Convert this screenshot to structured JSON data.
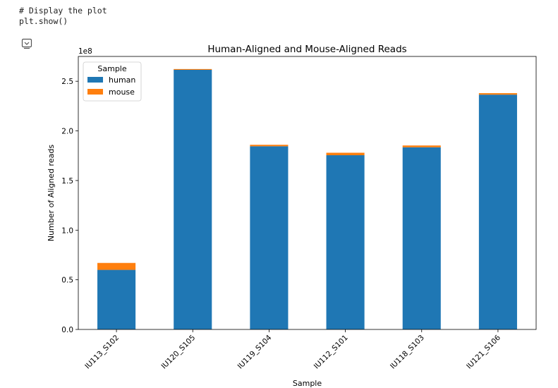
{
  "code": {
    "line1": "# Display the plot",
    "line2": "plt.show()"
  },
  "output_icon": "output-toggle-icon",
  "chart_data": {
    "type": "bar",
    "stacked": true,
    "title": "Human-Aligned and Mouse-Aligned Reads",
    "xlabel": "Sample",
    "ylabel": "Number of Aligned reads",
    "y_offset_label": "1e8",
    "y_scale": 100000000,
    "ylim": [
      0,
      2.75
    ],
    "yticks": [
      "0.0",
      "0.5",
      "1.0",
      "1.5",
      "2.0",
      "2.5"
    ],
    "categories": [
      "IU113_S102",
      "IU120_S105",
      "IU119_S104",
      "IU112_S101",
      "IU118_S103",
      "IU121_S106"
    ],
    "series": [
      {
        "name": "human",
        "color": "#1f77b4",
        "values": [
          0.6,
          2.615,
          1.845,
          1.755,
          1.835,
          2.365
        ]
      },
      {
        "name": "mouse",
        "color": "#ff7f0e",
        "values": [
          0.07,
          0.008,
          0.015,
          0.025,
          0.018,
          0.015
        ]
      }
    ],
    "legend": {
      "title": "Sample",
      "placement": "top-left"
    },
    "grid": false
  }
}
